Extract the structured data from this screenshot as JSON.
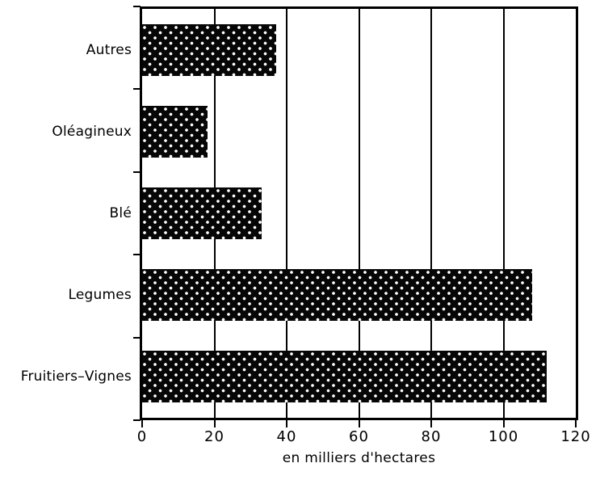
{
  "chart_data": {
    "type": "bar",
    "orientation": "horizontal",
    "title": "",
    "categories": [
      "Autres",
      "Oléagineux",
      "Blé",
      "Legumes",
      "Fruitiers–Vignes"
    ],
    "values": [
      37,
      18,
      33,
      108,
      112
    ],
    "xlabel": "en milliers d'hectares",
    "ylabel": "",
    "xlim": [
      0,
      120
    ],
    "xticks": [
      0,
      20,
      40,
      60,
      80,
      100,
      120
    ],
    "grid": "vertical gridlines at each x tick, full plot height",
    "legend": "none",
    "bar_style": "black fill with white dot lattice (crosshatch) pattern",
    "colors": {
      "bar": "#060606",
      "pattern_dot": "#ffffff",
      "axis": "#000000",
      "background": "#ffffff"
    }
  }
}
